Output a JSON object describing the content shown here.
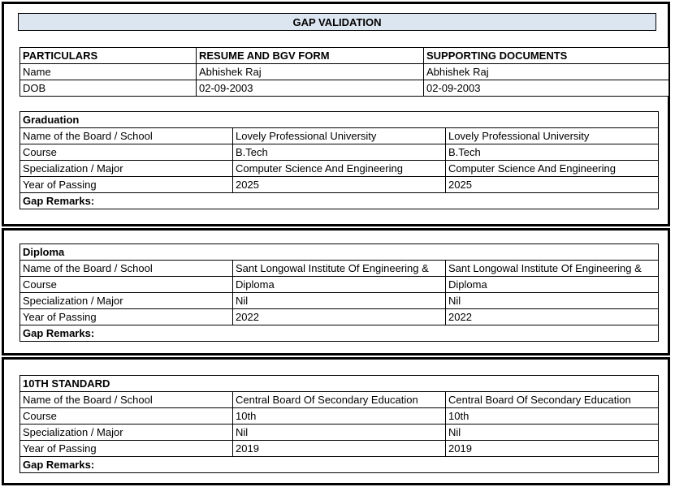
{
  "title": "GAP VALIDATION",
  "colors": {
    "header_fill": "#DCE6F1",
    "border": "#000000",
    "page_background": "#ffffff"
  },
  "main_table": {
    "headers": [
      "PARTICULARS",
      "RESUME AND BGV FORM",
      "SUPPORTING DOCUMENTS"
    ],
    "rows": [
      {
        "label": "Name",
        "resume": "Abhishek Raj",
        "supporting": "Abhishek Raj"
      },
      {
        "label": "DOB",
        "resume": "02-09-2003",
        "supporting": "02-09-2003"
      }
    ]
  },
  "sections": [
    {
      "heading": "Graduation",
      "rows": [
        {
          "label": "Name of the Board / School",
          "resume": "Lovely Professional University",
          "supporting": "Lovely Professional University"
        },
        {
          "label": "Course",
          "resume": "B.Tech",
          "supporting": "B.Tech"
        },
        {
          "label": "Specialization / Major",
          "resume": "Computer Science And Engineering",
          "supporting": "Computer Science And Engineering"
        },
        {
          "label": "Year of Passing",
          "resume": "2025",
          "supporting": "2025"
        }
      ],
      "gap_remarks_label": "Gap Remarks:"
    },
    {
      "heading": "Diploma",
      "rows": [
        {
          "label": "Name of the Board / School",
          "resume": "Sant Longowal Institute Of Engineering &",
          "supporting": "Sant Longowal Institute Of Engineering &"
        },
        {
          "label": "Course",
          "resume": "Diploma",
          "supporting": "Diploma"
        },
        {
          "label": "Specialization / Major",
          "resume": "Nil",
          "supporting": "Nil"
        },
        {
          "label": "Year of Passing",
          "resume": "2022",
          "supporting": "2022"
        }
      ],
      "gap_remarks_label": "Gap Remarks:"
    },
    {
      "heading": "10TH STANDARD",
      "rows": [
        {
          "label": "Name of the Board / School",
          "resume": "Central Board Of Secondary Education",
          "supporting": "Central Board Of Secondary Education"
        },
        {
          "label": "Course",
          "resume": "10th",
          "supporting": "10th"
        },
        {
          "label": "Specialization / Major",
          "resume": "Nil",
          "supporting": "Nil"
        },
        {
          "label": "Year of Passing",
          "resume": "2019",
          "supporting": "2019"
        }
      ],
      "gap_remarks_label": "Gap Remarks:"
    }
  ]
}
